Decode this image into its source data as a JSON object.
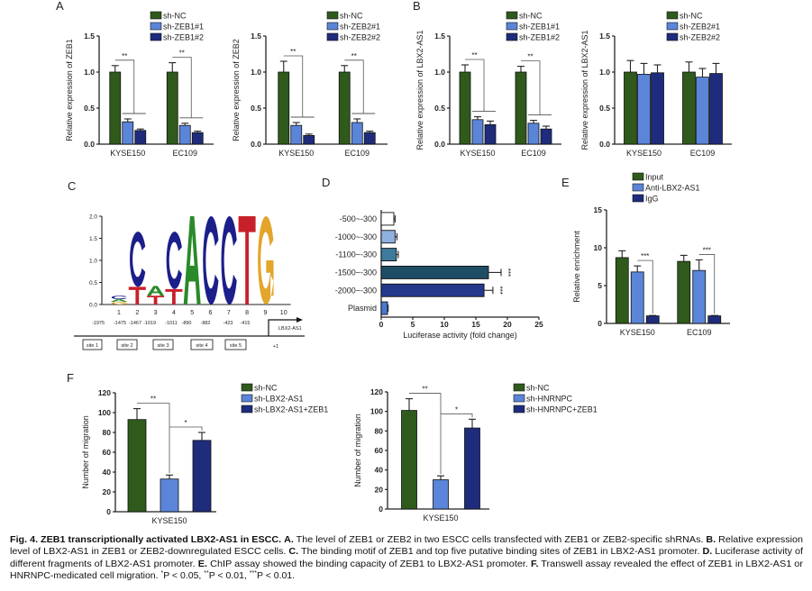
{
  "panel_labels": {
    "A": "A",
    "B": "B",
    "C": "C",
    "D": "D",
    "E": "E",
    "F": "F"
  },
  "colors": {
    "green": "#2f5a1c",
    "light_blue": "#5a85d8",
    "navy": "#1f2c7c",
    "axis": "#222222"
  },
  "chart_data": [
    {
      "id": "A1",
      "type": "bar",
      "ylabel": "Relative expression of  ZEB1",
      "ylim": [
        0,
        1.5
      ],
      "yticks": [
        0,
        0.5,
        1.0,
        1.5
      ],
      "ytick_labels": [
        "0.0",
        "0.5",
        "1.0",
        "1.5"
      ],
      "categories": [
        "KYSE150",
        "EC109"
      ],
      "series": [
        {
          "name": "sh-NC",
          "color": "#2f5a1c",
          "values": [
            1.0,
            1.0
          ],
          "errors": [
            0.09,
            0.13
          ]
        },
        {
          "name": "sh-ZEB1#1",
          "color": "#5a85d8",
          "values": [
            0.31,
            0.26
          ],
          "errors": [
            0.04,
            0.03
          ]
        },
        {
          "name": "sh-ZEB1#2",
          "color": "#1f2c7c",
          "values": [
            0.19,
            0.16
          ],
          "errors": [
            0.02,
            0.02
          ]
        }
      ],
      "significance": [
        {
          "group": 0,
          "control": 0,
          "vs": [
            1,
            2
          ],
          "label": "**"
        },
        {
          "group": 1,
          "control": 0,
          "vs": [
            1,
            2
          ],
          "label": "**"
        }
      ]
    },
    {
      "id": "A2",
      "type": "bar",
      "ylabel": "Relative expression of  ZEB2",
      "ylim": [
        0,
        1.5
      ],
      "yticks": [
        0,
        0.5,
        1.0,
        1.5
      ],
      "ytick_labels": [
        "0.0",
        "0.5",
        "1.0",
        "1.5"
      ],
      "categories": [
        "KYSE150",
        "EC109"
      ],
      "series": [
        {
          "name": "sh-NC",
          "color": "#2f5a1c",
          "values": [
            1.0,
            1.0
          ],
          "errors": [
            0.15,
            0.09
          ]
        },
        {
          "name": "sh-ZEB2#1",
          "color": "#5a85d8",
          "values": [
            0.26,
            0.3
          ],
          "errors": [
            0.04,
            0.05
          ]
        },
        {
          "name": "sh-ZEB2#2",
          "color": "#1f2c7c",
          "values": [
            0.12,
            0.16
          ],
          "errors": [
            0.02,
            0.02
          ]
        }
      ],
      "significance": [
        {
          "group": 0,
          "control": 0,
          "vs": [
            1,
            2
          ],
          "label": "**"
        },
        {
          "group": 1,
          "control": 0,
          "vs": [
            1,
            2
          ],
          "label": "**"
        }
      ]
    },
    {
      "id": "B1",
      "type": "bar",
      "ylabel": "Relative expression of LBX2-AS1",
      "ylim": [
        0,
        1.5
      ],
      "yticks": [
        0,
        0.5,
        1.0,
        1.5
      ],
      "ytick_labels": [
        "0.0",
        "0.5",
        "1.0",
        "1.5"
      ],
      "categories": [
        "KYSE150",
        "EC109"
      ],
      "series": [
        {
          "name": "sh-NC",
          "color": "#2f5a1c",
          "values": [
            1.0,
            1.0
          ],
          "errors": [
            0.1,
            0.08
          ]
        },
        {
          "name": "sh-ZEB1#1",
          "color": "#5a85d8",
          "values": [
            0.34,
            0.29
          ],
          "errors": [
            0.04,
            0.04
          ]
        },
        {
          "name": "sh-ZEB1#2",
          "color": "#1f2c7c",
          "values": [
            0.27,
            0.21
          ],
          "errors": [
            0.05,
            0.04
          ]
        }
      ],
      "significance": [
        {
          "group": 0,
          "control": 0,
          "vs": [
            1,
            2
          ],
          "label": "**"
        },
        {
          "group": 1,
          "control": 0,
          "vs": [
            1,
            2
          ],
          "label": "**"
        }
      ]
    },
    {
      "id": "B2",
      "type": "bar",
      "ylabel": "Relative expression of LBX2-AS1",
      "ylim": [
        0,
        1.5
      ],
      "yticks": [
        0,
        0.5,
        1.0,
        1.5
      ],
      "ytick_labels": [
        "0.0",
        "0.5",
        "1.0",
        "1.5"
      ],
      "categories": [
        "KYSE150",
        "EC109"
      ],
      "series": [
        {
          "name": "sh-NC",
          "color": "#2f5a1c",
          "values": [
            1.0,
            1.0
          ],
          "errors": [
            0.16,
            0.14
          ]
        },
        {
          "name": "sh-ZEB2#1",
          "color": "#5a85d8",
          "values": [
            0.97,
            0.93
          ],
          "errors": [
            0.15,
            0.12
          ]
        },
        {
          "name": "sh-ZEB2#2",
          "color": "#1f2c7c",
          "values": [
            0.99,
            0.98
          ],
          "errors": [
            0.11,
            0.14
          ]
        }
      ],
      "significance": []
    },
    {
      "id": "C",
      "type": "sequence-logo",
      "ylim": [
        0,
        2.0
      ],
      "yticks": [
        0,
        0.5,
        1.0,
        1.5,
        2.0
      ],
      "ytick_labels": [
        "0.0",
        "0.5",
        "1.0",
        "1.5",
        "2.0"
      ],
      "positions": [
        "1",
        "2",
        "3",
        "4",
        "5",
        "6",
        "7",
        "8",
        "9",
        "10"
      ],
      "letter_colors": {
        "A": "#2a8a2a",
        "C": "#1c1f8a",
        "G": "#e3a52a",
        "T": "#c8202a"
      },
      "stacks": [
        [
          {
            "letter": "G",
            "bits": 0.06
          },
          {
            "letter": "A",
            "bits": 0.06
          },
          {
            "letter": "C",
            "bits": 0.08
          }
        ],
        [
          {
            "letter": "T",
            "bits": 0.4
          },
          {
            "letter": "C",
            "bits": 1.25
          }
        ],
        [
          {
            "letter": "T",
            "bits": 0.2
          },
          {
            "letter": "A",
            "bits": 0.22
          }
        ],
        [
          {
            "letter": "T",
            "bits": 0.35
          },
          {
            "letter": "C",
            "bits": 1.3
          }
        ],
        [
          {
            "letter": "A",
            "bits": 2.0
          }
        ],
        [
          {
            "letter": "C",
            "bits": 2.0
          }
        ],
        [
          {
            "letter": "C",
            "bits": 2.0
          }
        ],
        [
          {
            "letter": "T",
            "bits": 2.0
          }
        ],
        [
          {
            "letter": "G",
            "bits": 2.0
          }
        ],
        []
      ],
      "promoter": {
        "coordinates": [
          "-1975",
          "-1475",
          "-1467",
          "-1019",
          "-1011",
          "-890",
          "-882",
          "-423",
          "-415"
        ],
        "sites": [
          "site 1",
          "site 2",
          "site 3",
          "site 4",
          "site 5"
        ],
        "gene_label": "LBX2-AS1",
        "tss_label": "+1"
      }
    },
    {
      "id": "D",
      "type": "bar",
      "orientation": "horizontal",
      "xlabel": "Luciferase activity (fold change)",
      "xlim": [
        0,
        25
      ],
      "xticks": [
        0,
        5,
        10,
        15,
        20,
        25
      ],
      "xtick_labels": [
        "0",
        "5",
        "10",
        "15",
        "20",
        "25"
      ],
      "categories": [
        "-500~-300",
        "-1000~-300",
        "-1100~-300",
        "-1500~-300",
        "-2000~-300",
        "Plasmid"
      ],
      "values": [
        2.0,
        2.2,
        2.4,
        17.0,
        16.3,
        1.0
      ],
      "errors": [
        0.2,
        0.3,
        0.3,
        2.0,
        1.4,
        0.1
      ],
      "bar_colors": [
        "#ffffff",
        "#8fb0e0",
        "#3d7a9c",
        "#1f4d66",
        "#24398c",
        "#4a78d0"
      ],
      "significance": [
        "",
        "",
        "",
        "***",
        "***",
        ""
      ]
    },
    {
      "id": "E",
      "type": "bar",
      "ylabel": "Relative enrichment",
      "ylim": [
        0,
        15
      ],
      "yticks": [
        0,
        5,
        10,
        15
      ],
      "ytick_labels": [
        "0",
        "5",
        "10",
        "15"
      ],
      "categories": [
        "KYSE150",
        "EC109"
      ],
      "series": [
        {
          "name": "Input",
          "color": "#2f5a1c",
          "values": [
            8.7,
            8.2
          ],
          "errors": [
            0.9,
            0.8
          ]
        },
        {
          "name": "Anti-LBX2-AS1",
          "color": "#5a85d8",
          "values": [
            6.8,
            7.0
          ],
          "errors": [
            0.8,
            1.4
          ]
        },
        {
          "name": "IgG",
          "color": "#1f2c7c",
          "values": [
            1.0,
            1.0
          ],
          "errors": [
            0.05,
            0.05
          ]
        }
      ],
      "significance": [
        {
          "group": 0,
          "control": 1,
          "vs": [
            2
          ],
          "label": "***"
        },
        {
          "group": 1,
          "control": 1,
          "vs": [
            2
          ],
          "label": "***"
        }
      ]
    },
    {
      "id": "F1",
      "type": "bar",
      "ylabel": "Number of migration",
      "ylim": [
        0,
        120
      ],
      "yticks": [
        0,
        20,
        40,
        60,
        80,
        100,
        120
      ],
      "ytick_labels": [
        "0",
        "20",
        "40",
        "60",
        "80",
        "100",
        "120"
      ],
      "categories": [
        "KYSE150"
      ],
      "series": [
        {
          "name": "sh-NC",
          "color": "#2f5a1c",
          "values": [
            93
          ],
          "errors": [
            11
          ]
        },
        {
          "name": "sh-LBX2-AS1",
          "color": "#5a85d8",
          "values": [
            33
          ],
          "errors": [
            4
          ]
        },
        {
          "name": "sh-LBX2-AS1+ZEB1",
          "color": "#1f2c7c",
          "values": [
            72
          ],
          "errors": [
            8
          ]
        }
      ],
      "significance": [
        {
          "group": 0,
          "control": 0,
          "vs": [
            1
          ],
          "label": "**"
        },
        {
          "group": 0,
          "control": 1,
          "vs": [
            2
          ],
          "label": "*"
        }
      ]
    },
    {
      "id": "F2",
      "type": "bar",
      "ylabel": "Number of migration",
      "ylim": [
        0,
        120
      ],
      "yticks": [
        0,
        20,
        40,
        60,
        80,
        100,
        120
      ],
      "ytick_labels": [
        "0",
        "20",
        "40",
        "60",
        "80",
        "100",
        "120"
      ],
      "categories": [
        "KYSE150"
      ],
      "series": [
        {
          "name": "sh-NC",
          "color": "#2f5a1c",
          "values": [
            101
          ],
          "errors": [
            12
          ]
        },
        {
          "name": "sh-HNRNPC",
          "color": "#5a85d8",
          "values": [
            30
          ],
          "errors": [
            4
          ]
        },
        {
          "name": "sh-HNRNPC+ZEB1",
          "color": "#1f2c7c",
          "values": [
            83
          ],
          "errors": [
            9
          ]
        }
      ],
      "significance": [
        {
          "group": 0,
          "control": 0,
          "vs": [
            1
          ],
          "label": "**"
        },
        {
          "group": 0,
          "control": 1,
          "vs": [
            2
          ],
          "label": "*"
        }
      ]
    }
  ],
  "caption": {
    "lines": [
      [
        {
          "t": "Fig. 4.  ZEB1 transcriptionally activated LBX2-AS1 in ESCC.",
          "b": true
        },
        {
          "t": " "
        },
        {
          "t": "A.",
          "b": true
        },
        {
          "t": " The level of ZEB1 or ZEB2 in two ESCC cells transfected with ZEB1 or ZEB2-specific shRNAs. "
        },
        {
          "t": "B.",
          "b": true
        },
        {
          "t": " Relative expression"
        }
      ],
      [
        {
          "t": "level of LBX2-AS1 in ZEB1 or ZEB2-downregulated ESCC cells. "
        },
        {
          "t": "C.",
          "b": true
        },
        {
          "t": " The binding motif of ZEB1 and top five putative binding sites of ZEB1 in LBX2-AS1 promoter. "
        },
        {
          "t": "D.",
          "b": true
        },
        {
          "t": " Luciferase activity of"
        }
      ],
      [
        {
          "t": "different fragments of LBX2-AS1 promoter. "
        },
        {
          "t": "E.",
          "b": true
        },
        {
          "t": " ChIP assay showed the binding capacity of ZEB1 to LBX2-AS1 promoter. "
        },
        {
          "t": "F.",
          "b": true
        },
        {
          "t": " Transwell assay revealed the effect of ZEB1 in LBX2-AS1 or"
        }
      ],
      [
        {
          "t": "HNRNPC-medicated cell migration. "
        },
        {
          "t": "*",
          "sup": true
        },
        {
          "t": "P < 0.05, "
        },
        {
          "t": "**",
          "sup": true
        },
        {
          "t": "P < 0.01, "
        },
        {
          "t": "***",
          "sup": true
        },
        {
          "t": "P < 0.01."
        }
      ]
    ]
  }
}
